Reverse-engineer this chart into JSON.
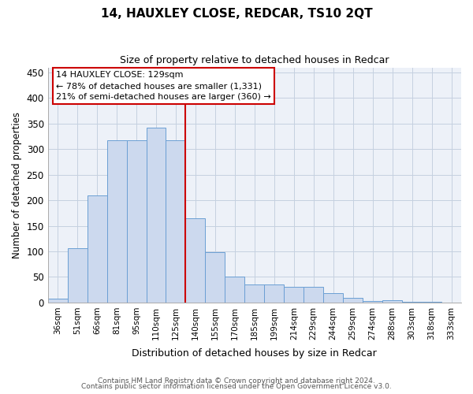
{
  "title": "14, HAUXLEY CLOSE, REDCAR, TS10 2QT",
  "subtitle": "Size of property relative to detached houses in Redcar",
  "xlabel": "Distribution of detached houses by size in Redcar",
  "ylabel": "Number of detached properties",
  "categories": [
    "36sqm",
    "51sqm",
    "66sqm",
    "81sqm",
    "95sqm",
    "110sqm",
    "125sqm",
    "140sqm",
    "155sqm",
    "170sqm",
    "185sqm",
    "199sqm",
    "214sqm",
    "229sqm",
    "244sqm",
    "259sqm",
    "274sqm",
    "288sqm",
    "303sqm",
    "318sqm",
    "333sqm"
  ],
  "values": [
    7,
    107,
    210,
    317,
    318,
    342,
    318,
    165,
    98,
    50,
    35,
    35,
    30,
    30,
    18,
    9,
    3,
    5,
    1,
    1,
    0
  ],
  "bar_color": "#ccd9ee",
  "bar_edge_color": "#6b9fd4",
  "vline_color": "#cc0000",
  "vline_index": 6,
  "annotation_line1": "14 HAUXLEY CLOSE: 129sqm",
  "annotation_line2": "← 78% of detached houses are smaller (1,331)",
  "annotation_line3": "21% of semi-detached houses are larger (360) →",
  "annotation_box_color": "#cc0000",
  "ylim": [
    0,
    460
  ],
  "yticks": [
    0,
    50,
    100,
    150,
    200,
    250,
    300,
    350,
    400,
    450
  ],
  "footer1": "Contains HM Land Registry data © Crown copyright and database right 2024.",
  "footer2": "Contains public sector information licensed under the Open Government Licence v3.0.",
  "grid_color": "#c5d0e0",
  "background_color": "#edf1f8"
}
